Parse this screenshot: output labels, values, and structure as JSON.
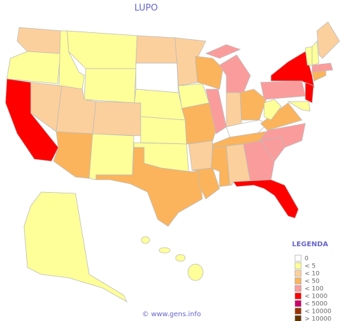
{
  "title": "LUPO",
  "legend": {
    "title": "LEGENDA",
    "items": [
      {
        "label": "0",
        "color": "#ffffff"
      },
      {
        "label": "< 5",
        "color": "#ffff99"
      },
      {
        "label": "< 10",
        "color": "#fcd09c"
      },
      {
        "label": "< 50",
        "color": "#fbb45c"
      },
      {
        "label": "< 100",
        "color": "#fb9c9c"
      },
      {
        "label": "< 1000",
        "color": "#ff0000"
      },
      {
        "label": "< 5000",
        "color": "#cc0066"
      },
      {
        "label": "< 10000",
        "color": "#993300"
      },
      {
        "label": "> 10000",
        "color": "#663300"
      }
    ]
  },
  "footer": "© www.gens.info"
}
